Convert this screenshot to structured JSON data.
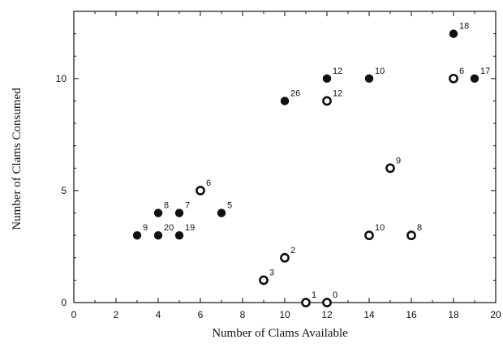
{
  "chart_data": {
    "type": "scatter",
    "title": "",
    "xlabel": "Number of Clams Available",
    "ylabel": "Number of Clams Consumed",
    "xlim": [
      0,
      20
    ],
    "ylim": [
      0,
      13
    ],
    "x_ticks": [
      "0",
      "2",
      "4",
      "6",
      "8",
      "10",
      "12",
      "14",
      "16",
      "18",
      "20"
    ],
    "y_ticks": [
      "0",
      "5",
      "10"
    ],
    "grid": false,
    "series": [
      {
        "marker": "filled-circle",
        "color": "#111111",
        "points": [
          {
            "x": 3,
            "y": 3,
            "label": "9"
          },
          {
            "x": 4,
            "y": 4,
            "label": "8"
          },
          {
            "x": 4,
            "y": 3,
            "label": "20"
          },
          {
            "x": 5,
            "y": 4,
            "label": "7"
          },
          {
            "x": 5,
            "y": 3,
            "label": "19"
          },
          {
            "x": 7,
            "y": 4,
            "label": "5"
          },
          {
            "x": 10,
            "y": 9,
            "label": "26"
          },
          {
            "x": 12,
            "y": 10,
            "label": "12"
          },
          {
            "x": 14,
            "y": 10,
            "label": "10"
          },
          {
            "x": 18,
            "y": 12,
            "label": "18"
          },
          {
            "x": 19,
            "y": 10,
            "label": "17"
          }
        ]
      },
      {
        "marker": "open-circle",
        "color": "#111111",
        "points": [
          {
            "x": 6,
            "y": 5,
            "label": "6"
          },
          {
            "x": 9,
            "y": 1,
            "label": "3"
          },
          {
            "x": 10,
            "y": 2,
            "label": "2"
          },
          {
            "x": 11,
            "y": 0,
            "label": "1"
          },
          {
            "x": 12,
            "y": 0,
            "label": "0"
          },
          {
            "x": 12,
            "y": 9,
            "label": "12"
          },
          {
            "x": 14,
            "y": 3,
            "label": "10"
          },
          {
            "x": 15,
            "y": 6,
            "label": "9"
          },
          {
            "x": 16,
            "y": 3,
            "label": "8"
          },
          {
            "x": 18,
            "y": 10,
            "label": "6"
          }
        ]
      }
    ]
  }
}
